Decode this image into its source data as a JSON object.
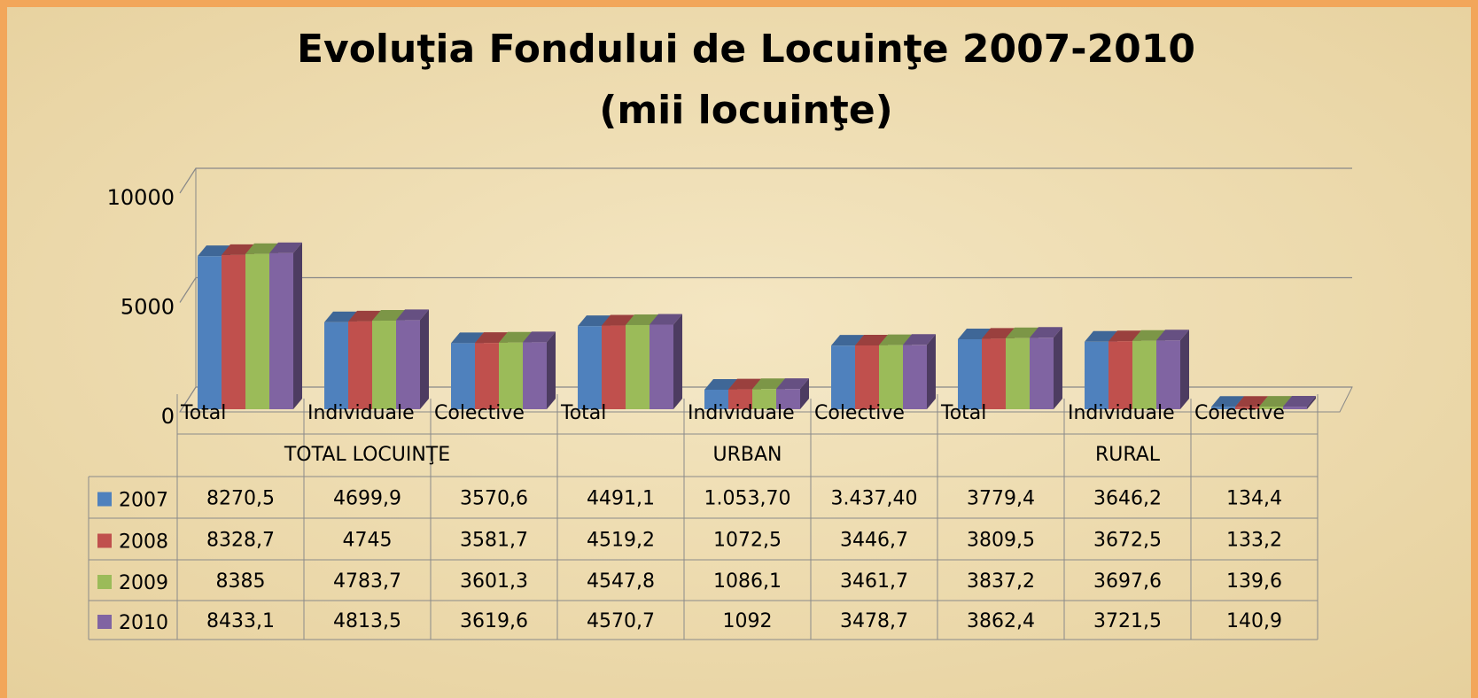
{
  "chart_data": {
    "type": "bar3d",
    "title": "Evoluţia Fondului de Locuinţe 2007-2010",
    "subtitle": "(mii locuinţe)",
    "groups": [
      {
        "label": "TOTAL LOCUINŢE",
        "categories": [
          "Total",
          "Individuale",
          "Colective"
        ]
      },
      {
        "label": "URBAN",
        "categories": [
          "Total",
          "Individuale",
          "Colective"
        ]
      },
      {
        "label": "RURAL",
        "categories": [
          "Total",
          "Individuale",
          "Colective"
        ]
      }
    ],
    "series": [
      {
        "name": "2007",
        "color": "#4f81bd",
        "values": [
          8270.5,
          4699.9,
          3570.6,
          4491.1,
          1053.7,
          3437.4,
          3779.4,
          3646.2,
          134.4
        ],
        "value_labels": [
          "8270,5",
          "4699,9",
          "3570,6",
          "4491,1",
          "1.053,70",
          "3.437,40",
          "3779,4",
          "3646,2",
          "134,4"
        ]
      },
      {
        "name": "2008",
        "color": "#c0504d",
        "values": [
          8328.7,
          4745,
          3581.7,
          4519.2,
          1072.5,
          3446.7,
          3809.5,
          3672.5,
          133.2
        ],
        "value_labels": [
          "8328,7",
          "4745",
          "3581,7",
          "4519,2",
          "1072,5",
          "3446,7",
          "3809,5",
          "3672,5",
          "133,2"
        ]
      },
      {
        "name": "2009",
        "color": "#9bbb59",
        "values": [
          8385,
          4783.7,
          3601.3,
          4547.8,
          1086.1,
          3461.7,
          3837.2,
          3697.6,
          139.6
        ],
        "value_labels": [
          "8385",
          "4783,7",
          "3601,3",
          "4547,8",
          "1086,1",
          "3461,7",
          "3837,2",
          "3697,6",
          "139,6"
        ]
      },
      {
        "name": "2010",
        "color": "#8064a2",
        "values": [
          8433.1,
          4813.5,
          3619.6,
          4570.7,
          1092,
          3478.7,
          3862.4,
          3721.5,
          140.9
        ],
        "value_labels": [
          "8433,1",
          "4813,5",
          "3619,6",
          "4570,7",
          "1092",
          "3478,7",
          "3862,4",
          "3721,5",
          "140,9"
        ]
      }
    ],
    "ylim": [
      0,
      10000
    ],
    "yticks": [
      0,
      5000,
      10000
    ],
    "grid": true
  }
}
